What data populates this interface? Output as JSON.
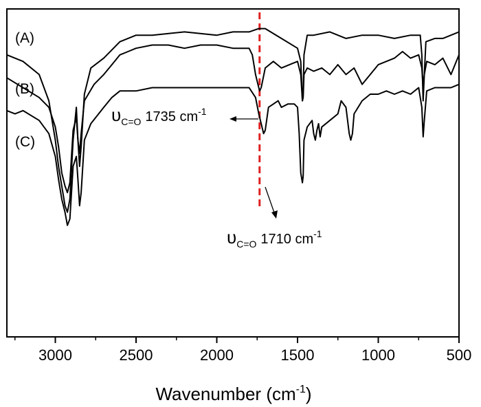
{
  "chart_data": {
    "type": "line",
    "title": "",
    "xlabel": "Wavenumber (cm",
    "xlabel_sup": "-1",
    "xlabel_end": ")",
    "ylabel": "",
    "xlim": [
      3300,
      500
    ],
    "ylim": [
      0,
      100
    ],
    "x_ticks": [
      3000,
      2500,
      2000,
      1500,
      1000,
      500
    ],
    "x_tick_labels": [
      "3000",
      "2500",
      "2000",
      "1500",
      "1000",
      "500"
    ],
    "grid": false,
    "series": [
      {
        "name": "(A)",
        "color": "#000000",
        "points": [
          [
            3300,
            86
          ],
          [
            3200,
            84
          ],
          [
            3100,
            80
          ],
          [
            3040,
            72
          ],
          [
            3000,
            60
          ],
          [
            2980,
            52
          ],
          [
            2960,
            46
          ],
          [
            2940,
            40
          ],
          [
            2925,
            38
          ],
          [
            2910,
            42
          ],
          [
            2890,
            60
          ],
          [
            2870,
            70
          ],
          [
            2860,
            60
          ],
          [
            2850,
            52
          ],
          [
            2840,
            58
          ],
          [
            2820,
            74
          ],
          [
            2780,
            82
          ],
          [
            2700,
            85
          ],
          [
            2600,
            90
          ],
          [
            2500,
            92
          ],
          [
            2400,
            92
          ],
          [
            2200,
            93
          ],
          [
            2000,
            92
          ],
          [
            1900,
            93
          ],
          [
            1800,
            93
          ],
          [
            1740,
            94
          ],
          [
            1700,
            94
          ],
          [
            1600,
            91
          ],
          [
            1500,
            88
          ],
          [
            1480,
            84
          ],
          [
            1470,
            72
          ],
          [
            1465,
            74
          ],
          [
            1460,
            86
          ],
          [
            1440,
            92
          ],
          [
            1400,
            92
          ],
          [
            1300,
            93
          ],
          [
            1200,
            91
          ],
          [
            1100,
            92
          ],
          [
            1000,
            92
          ],
          [
            900,
            91
          ],
          [
            800,
            92
          ],
          [
            740,
            92
          ],
          [
            730,
            86
          ],
          [
            722,
            72
          ],
          [
            715,
            80
          ],
          [
            705,
            90
          ],
          [
            650,
            91
          ],
          [
            600,
            91
          ],
          [
            500,
            93
          ]
        ]
      },
      {
        "name": "(B)",
        "color": "#000000",
        "points": [
          [
            3300,
            79
          ],
          [
            3100,
            73
          ],
          [
            3040,
            70
          ],
          [
            3000,
            64
          ],
          [
            2980,
            58
          ],
          [
            2960,
            50
          ],
          [
            2940,
            46
          ],
          [
            2925,
            44
          ],
          [
            2910,
            47
          ],
          [
            2890,
            63
          ],
          [
            2870,
            67
          ],
          [
            2860,
            60
          ],
          [
            2850,
            56
          ],
          [
            2840,
            62
          ],
          [
            2820,
            72
          ],
          [
            2760,
            77
          ],
          [
            2700,
            80
          ],
          [
            2650,
            83
          ],
          [
            2600,
            86
          ],
          [
            2550,
            87
          ],
          [
            2500,
            88
          ],
          [
            2400,
            89
          ],
          [
            2300,
            89
          ],
          [
            2200,
            88
          ],
          [
            2100,
            89
          ],
          [
            2000,
            89
          ],
          [
            1900,
            88
          ],
          [
            1800,
            88
          ],
          [
            1780,
            86
          ],
          [
            1760,
            80
          ],
          [
            1745,
            77
          ],
          [
            1735,
            75
          ],
          [
            1725,
            76
          ],
          [
            1700,
            82
          ],
          [
            1650,
            84
          ],
          [
            1600,
            82
          ],
          [
            1550,
            83
          ],
          [
            1500,
            84
          ],
          [
            1480,
            80
          ],
          [
            1470,
            72
          ],
          [
            1465,
            73
          ],
          [
            1460,
            80
          ],
          [
            1440,
            82
          ],
          [
            1400,
            81
          ],
          [
            1350,
            82
          ],
          [
            1300,
            80
          ],
          [
            1250,
            83
          ],
          [
            1200,
            80
          ],
          [
            1150,
            82
          ],
          [
            1100,
            77
          ],
          [
            1050,
            80
          ],
          [
            1000,
            83
          ],
          [
            950,
            84
          ],
          [
            900,
            85
          ],
          [
            850,
            87
          ],
          [
            800,
            85
          ],
          [
            750,
            86
          ],
          [
            730,
            82
          ],
          [
            722,
            76
          ],
          [
            715,
            80
          ],
          [
            700,
            84
          ],
          [
            650,
            83
          ],
          [
            600,
            85
          ],
          [
            550,
            80
          ],
          [
            500,
            86
          ]
        ]
      },
      {
        "name": "(C)",
        "color": "#000000",
        "points": [
          [
            3300,
            69
          ],
          [
            3250,
            68
          ],
          [
            3200,
            69
          ],
          [
            3100,
            66
          ],
          [
            3040,
            62
          ],
          [
            3000,
            55
          ],
          [
            2980,
            48
          ],
          [
            2960,
            42
          ],
          [
            2940,
            38
          ],
          [
            2925,
            34
          ],
          [
            2910,
            36
          ],
          [
            2890,
            52
          ],
          [
            2870,
            55
          ],
          [
            2860,
            48
          ],
          [
            2850,
            40
          ],
          [
            2840,
            44
          ],
          [
            2820,
            60
          ],
          [
            2780,
            65
          ],
          [
            2700,
            70
          ],
          [
            2650,
            73
          ],
          [
            2600,
            75
          ],
          [
            2550,
            75
          ],
          [
            2500,
            75
          ],
          [
            2400,
            76
          ],
          [
            2300,
            76
          ],
          [
            2200,
            76
          ],
          [
            2100,
            76
          ],
          [
            2000,
            76
          ],
          [
            1900,
            76
          ],
          [
            1800,
            76
          ],
          [
            1760,
            73
          ],
          [
            1740,
            68
          ],
          [
            1720,
            64
          ],
          [
            1710,
            62
          ],
          [
            1700,
            63
          ],
          [
            1680,
            70
          ],
          [
            1650,
            71
          ],
          [
            1620,
            72
          ],
          [
            1600,
            70
          ],
          [
            1560,
            71
          ],
          [
            1520,
            71
          ],
          [
            1500,
            70
          ],
          [
            1490,
            62
          ],
          [
            1480,
            50
          ],
          [
            1470,
            47
          ],
          [
            1465,
            49
          ],
          [
            1460,
            60
          ],
          [
            1440,
            64
          ],
          [
            1410,
            66
          ],
          [
            1400,
            62
          ],
          [
            1390,
            60
          ],
          [
            1380,
            63
          ],
          [
            1370,
            65
          ],
          [
            1360,
            61
          ],
          [
            1350,
            64
          ],
          [
            1300,
            66
          ],
          [
            1250,
            68
          ],
          [
            1230,
            72
          ],
          [
            1200,
            70
          ],
          [
            1180,
            62
          ],
          [
            1170,
            60
          ],
          [
            1160,
            62
          ],
          [
            1150,
            68
          ],
          [
            1100,
            72
          ],
          [
            1050,
            74
          ],
          [
            1000,
            74
          ],
          [
            950,
            75
          ],
          [
            900,
            74
          ],
          [
            850,
            75
          ],
          [
            800,
            74
          ],
          [
            750,
            76
          ],
          [
            730,
            70
          ],
          [
            722,
            61
          ],
          [
            715,
            66
          ],
          [
            700,
            75
          ],
          [
            650,
            76
          ],
          [
            600,
            76
          ],
          [
            550,
            76
          ],
          [
            500,
            77
          ]
        ]
      }
    ],
    "reference_line": {
      "x": 1735,
      "color": "#e02020",
      "style": "dashed"
    },
    "annotations": [
      {
        "symbol": "υ",
        "sub": "C=O",
        "text": "1735 cm",
        "sup": "-1",
        "target_x": 1735
      },
      {
        "symbol": "υ",
        "sub": "C=O",
        "text": "1710 cm",
        "sup": "-1",
        "target_x": 1710
      }
    ]
  }
}
